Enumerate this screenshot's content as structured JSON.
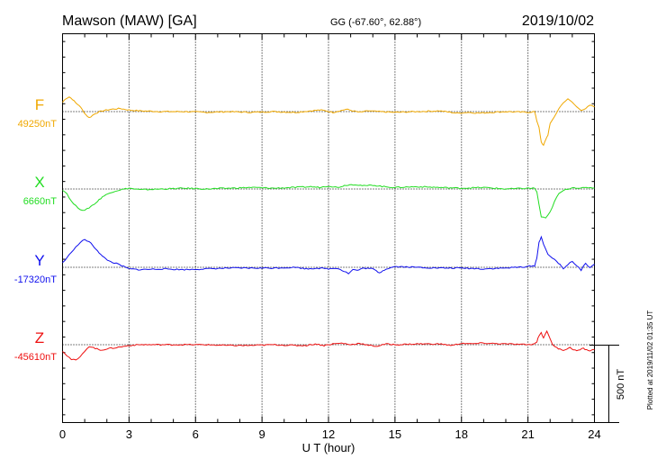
{
  "header": {
    "station": "Mawson (MAW)  [GA]",
    "coords": "GG (-67.60°,  62.88°)",
    "date": "2019/10/02"
  },
  "side_note": "Plotted at 2019/11/02 01:35 UT",
  "scale_bar_label": "500 nT",
  "chart_data": {
    "type": "line",
    "xlabel": "U T (hour)",
    "xlim": [
      0,
      24
    ],
    "xticks": [
      "0",
      "3",
      "6",
      "9",
      "12",
      "15",
      "18",
      "21",
      "24"
    ],
    "grid": "vertical dotted at 3-hour intervals; dotted baseline per series",
    "units_per_scale_bar": 500,
    "series": [
      {
        "name": "F",
        "baseline_label": "49250nT",
        "color": "#f0a800",
        "points": [
          [
            0,
            60
          ],
          [
            0.15,
            85
          ],
          [
            0.3,
            95
          ],
          [
            0.45,
            80
          ],
          [
            0.6,
            55
          ],
          [
            0.75,
            40
          ],
          [
            0.9,
            10
          ],
          [
            1.05,
            -20
          ],
          [
            1.2,
            -40
          ],
          [
            1.35,
            -25
          ],
          [
            1.5,
            -10
          ],
          [
            1.8,
            5
          ],
          [
            2.2,
            15
          ],
          [
            2.6,
            20
          ],
          [
            3,
            10
          ],
          [
            3.5,
            5
          ],
          [
            4.5,
            0
          ],
          [
            5.5,
            0
          ],
          [
            6.5,
            -5
          ],
          [
            7.5,
            0
          ],
          [
            8.5,
            -5
          ],
          [
            9.5,
            0
          ],
          [
            10.5,
            -5
          ],
          [
            11.2,
            5
          ],
          [
            11.6,
            10
          ],
          [
            11.9,
            5
          ],
          [
            12.2,
            -5
          ],
          [
            12.5,
            5
          ],
          [
            12.8,
            15
          ],
          [
            13.1,
            5
          ],
          [
            13.4,
            -5
          ],
          [
            13.8,
            5
          ],
          [
            14.2,
            0
          ],
          [
            15,
            -5
          ],
          [
            16,
            0
          ],
          [
            17,
            5
          ],
          [
            17.8,
            -10
          ],
          [
            18.3,
            -5
          ],
          [
            18.8,
            -10
          ],
          [
            19.3,
            -5
          ],
          [
            20,
            0
          ],
          [
            21,
            -5
          ],
          [
            21.3,
            0
          ],
          [
            21.4,
            -60
          ],
          [
            21.5,
            -100
          ],
          [
            21.6,
            -200
          ],
          [
            21.7,
            -220
          ],
          [
            21.8,
            -180
          ],
          [
            21.9,
            -150
          ],
          [
            22,
            -80
          ],
          [
            22.2,
            -30
          ],
          [
            22.4,
            20
          ],
          [
            22.6,
            60
          ],
          [
            22.8,
            80
          ],
          [
            23,
            60
          ],
          [
            23.2,
            30
          ],
          [
            23.4,
            10
          ],
          [
            23.6,
            20
          ],
          [
            23.8,
            40
          ],
          [
            24,
            30
          ]
        ]
      },
      {
        "name": "X",
        "baseline_label": "6660nT",
        "color": "#22dd22",
        "points": [
          [
            0,
            -5
          ],
          [
            0.2,
            -30
          ],
          [
            0.4,
            -80
          ],
          [
            0.6,
            -110
          ],
          [
            0.8,
            -130
          ],
          [
            1,
            -140
          ],
          [
            1.2,
            -120
          ],
          [
            1.5,
            -90
          ],
          [
            1.8,
            -50
          ],
          [
            2.2,
            -20
          ],
          [
            2.6,
            -5
          ],
          [
            3,
            5
          ],
          [
            3.5,
            -5
          ],
          [
            4.5,
            0
          ],
          [
            5.5,
            5
          ],
          [
            6.5,
            0
          ],
          [
            7.5,
            5
          ],
          [
            8.5,
            10
          ],
          [
            9.5,
            5
          ],
          [
            10.5,
            10
          ],
          [
            11.2,
            15
          ],
          [
            11.6,
            10
          ],
          [
            12,
            20
          ],
          [
            12.4,
            10
          ],
          [
            12.8,
            25
          ],
          [
            13.2,
            30
          ],
          [
            13.6,
            20
          ],
          [
            14,
            25
          ],
          [
            14.5,
            15
          ],
          [
            15,
            10
          ],
          [
            16,
            15
          ],
          [
            17,
            10
          ],
          [
            18,
            5
          ],
          [
            19,
            10
          ],
          [
            20,
            0
          ],
          [
            21,
            5
          ],
          [
            21.3,
            5
          ],
          [
            21.4,
            -20
          ],
          [
            21.6,
            -180
          ],
          [
            21.8,
            -190
          ],
          [
            22,
            -150
          ],
          [
            22.2,
            -80
          ],
          [
            22.4,
            -30
          ],
          [
            22.6,
            -10
          ],
          [
            22.8,
            0
          ],
          [
            23,
            10
          ],
          [
            23.4,
            5
          ],
          [
            23.8,
            10
          ],
          [
            24,
            5
          ]
        ]
      },
      {
        "name": "Y",
        "baseline_label": "-17320nT",
        "color": "#1010ee",
        "points": [
          [
            0,
            30
          ],
          [
            0.2,
            60
          ],
          [
            0.4,
            100
          ],
          [
            0.6,
            130
          ],
          [
            0.8,
            160
          ],
          [
            1,
            180
          ],
          [
            1.2,
            165
          ],
          [
            1.5,
            120
          ],
          [
            1.8,
            70
          ],
          [
            2.1,
            40
          ],
          [
            2.5,
            20
          ],
          [
            3,
            -10
          ],
          [
            3.5,
            -15
          ],
          [
            4.5,
            -10
          ],
          [
            5.5,
            -15
          ],
          [
            6.5,
            -10
          ],
          [
            7.5,
            -5
          ],
          [
            8.5,
            -5
          ],
          [
            9.5,
            -5
          ],
          [
            10.5,
            0
          ],
          [
            11,
            -10
          ],
          [
            11.5,
            -5
          ],
          [
            12,
            -10
          ],
          [
            12.4,
            -5
          ],
          [
            12.7,
            -25
          ],
          [
            12.9,
            -40
          ],
          [
            13.1,
            -15
          ],
          [
            13.3,
            -20
          ],
          [
            13.6,
            -5
          ],
          [
            14,
            -10
          ],
          [
            14.3,
            -35
          ],
          [
            14.6,
            -10
          ],
          [
            15,
            5
          ],
          [
            16,
            0
          ],
          [
            17,
            -5
          ],
          [
            18,
            -5
          ],
          [
            19,
            -10
          ],
          [
            20,
            -5
          ],
          [
            21,
            5
          ],
          [
            21.3,
            10
          ],
          [
            21.4,
            60
          ],
          [
            21.5,
            160
          ],
          [
            21.6,
            200
          ],
          [
            21.7,
            150
          ],
          [
            21.9,
            80
          ],
          [
            22.1,
            60
          ],
          [
            22.3,
            40
          ],
          [
            22.6,
            -10
          ],
          [
            22.8,
            20
          ],
          [
            23,
            40
          ],
          [
            23.2,
            10
          ],
          [
            23.4,
            -20
          ],
          [
            23.6,
            30
          ],
          [
            23.8,
            -5
          ],
          [
            24,
            20
          ]
        ]
      },
      {
        "name": "Z",
        "baseline_label": "-45610nT",
        "color": "#ee1010",
        "points": [
          [
            0,
            -40
          ],
          [
            0.2,
            -70
          ],
          [
            0.4,
            -95
          ],
          [
            0.6,
            -100
          ],
          [
            0.8,
            -80
          ],
          [
            1,
            -40
          ],
          [
            1.2,
            -10
          ],
          [
            1.4,
            -20
          ],
          [
            1.7,
            -35
          ],
          [
            2.1,
            -25
          ],
          [
            2.6,
            -15
          ],
          [
            3,
            -5
          ],
          [
            3.5,
            0
          ],
          [
            4.5,
            0
          ],
          [
            5.5,
            0
          ],
          [
            6.5,
            0
          ],
          [
            7.5,
            -5
          ],
          [
            8.5,
            -5
          ],
          [
            9.5,
            0
          ],
          [
            10.5,
            -5
          ],
          [
            11,
            -5
          ],
          [
            11.4,
            5
          ],
          [
            11.8,
            -5
          ],
          [
            12.2,
            5
          ],
          [
            12.6,
            10
          ],
          [
            13,
            0
          ],
          [
            13.4,
            10
          ],
          [
            13.8,
            -5
          ],
          [
            14.2,
            -10
          ],
          [
            14.6,
            5
          ],
          [
            15,
            0
          ],
          [
            16,
            5
          ],
          [
            17,
            5
          ],
          [
            17.6,
            -5
          ],
          [
            18,
            10
          ],
          [
            18.4,
            5
          ],
          [
            19,
            10
          ],
          [
            20,
            5
          ],
          [
            21,
            0
          ],
          [
            21.3,
            5
          ],
          [
            21.4,
            20
          ],
          [
            21.5,
            60
          ],
          [
            21.6,
            80
          ],
          [
            21.7,
            40
          ],
          [
            21.85,
            90
          ],
          [
            22,
            40
          ],
          [
            22.1,
            0
          ],
          [
            22.3,
            -20
          ],
          [
            22.6,
            -35
          ],
          [
            22.9,
            -20
          ],
          [
            23.2,
            -40
          ],
          [
            23.5,
            -25
          ],
          [
            23.8,
            -40
          ],
          [
            24,
            -30
          ]
        ]
      }
    ]
  }
}
